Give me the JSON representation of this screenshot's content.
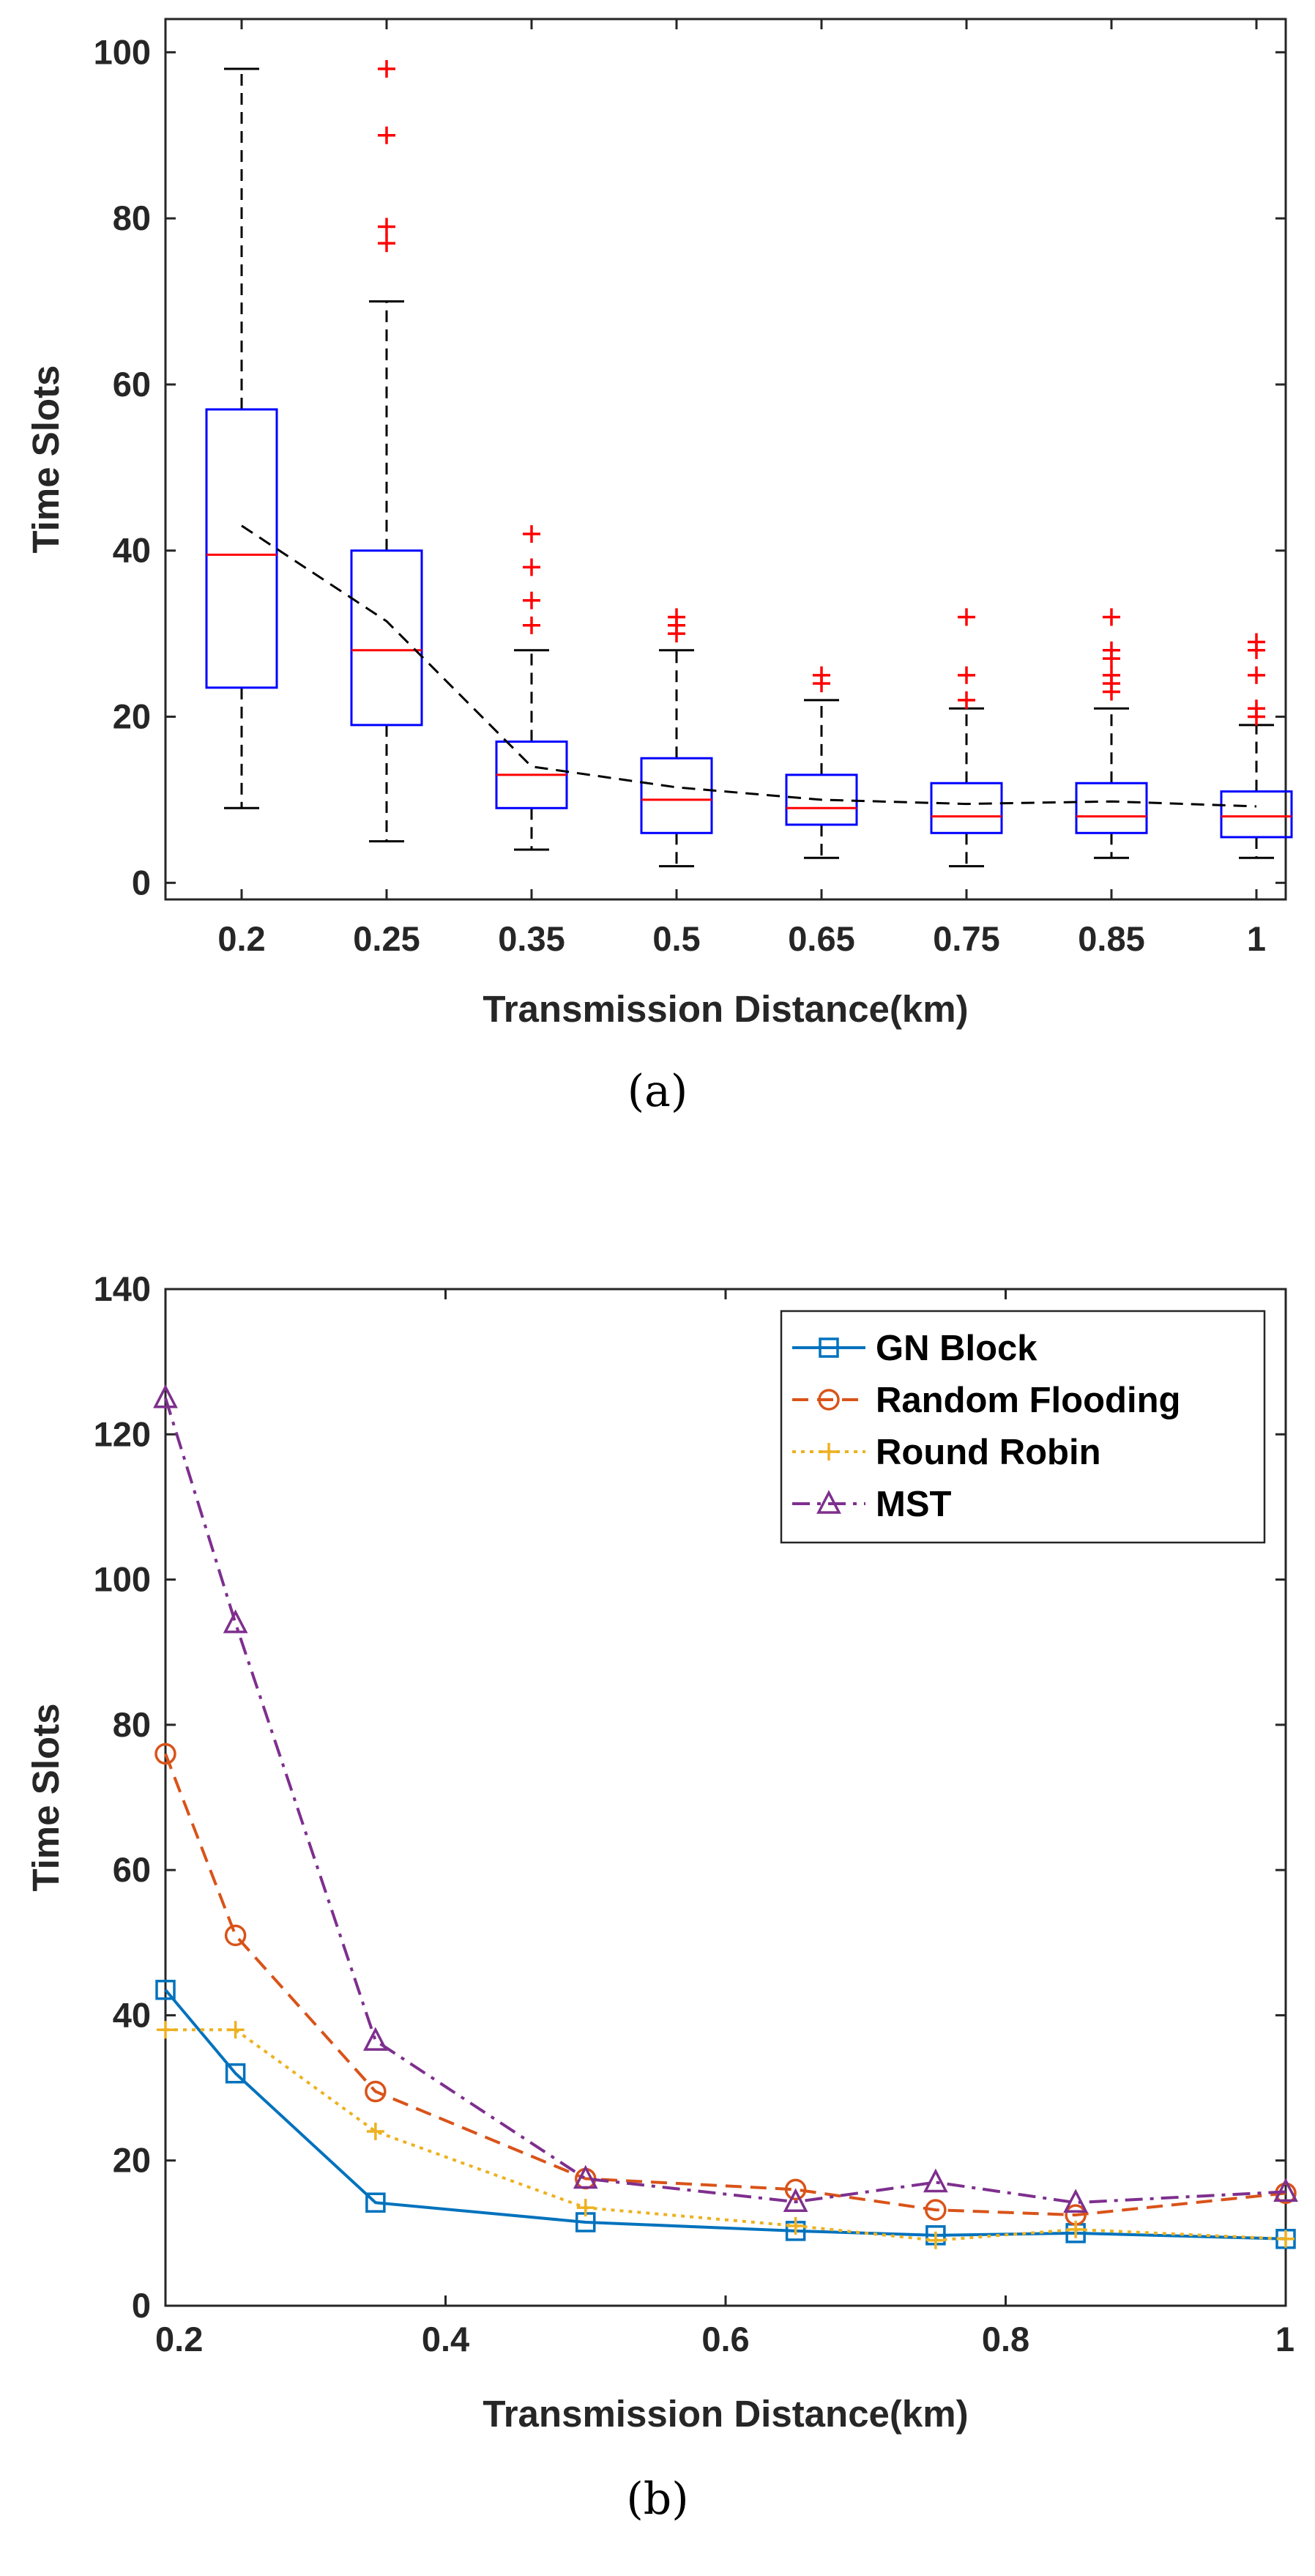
{
  "chart_data": [
    {
      "type": "box",
      "panel": "(a)",
      "caption": "(a)",
      "title": "",
      "xlabel": "Transmission Distance(km)",
      "ylabel": "Time Slots",
      "ylim": [
        -2,
        104
      ],
      "yticks": [
        0,
        20,
        40,
        60,
        80,
        100
      ],
      "categories": [
        "0.2",
        "0.25",
        "0.35",
        "0.5",
        "0.65",
        "0.75",
        "0.85",
        "1"
      ],
      "boxes": [
        {
          "min": 9,
          "q1": 23.5,
          "median": 39.5,
          "q3": 57,
          "max": 98,
          "outliers": []
        },
        {
          "min": 5,
          "q1": 19,
          "median": 28,
          "q3": 40,
          "max": 70,
          "outliers": [
            77,
            79,
            90,
            98
          ]
        },
        {
          "min": 4,
          "q1": 9,
          "median": 13,
          "q3": 17,
          "max": 28,
          "outliers": [
            31,
            34,
            38,
            42
          ]
        },
        {
          "min": 2,
          "q1": 6,
          "median": 10,
          "q3": 15,
          "max": 28,
          "outliers": [
            30,
            31,
            32
          ]
        },
        {
          "min": 3,
          "q1": 7,
          "median": 9,
          "q3": 13,
          "max": 22,
          "outliers": [
            24,
            25
          ]
        },
        {
          "min": 2,
          "q1": 6,
          "median": 8,
          "q3": 12,
          "max": 21,
          "outliers": [
            22,
            25,
            32
          ]
        },
        {
          "min": 3,
          "q1": 6,
          "median": 8,
          "q3": 12,
          "max": 21,
          "outliers": [
            23,
            24,
            25,
            27,
            28,
            32
          ]
        },
        {
          "min": 3,
          "q1": 5.5,
          "median": 8,
          "q3": 11,
          "max": 19,
          "outliers": [
            20,
            21,
            25,
            28,
            29
          ]
        }
      ],
      "mean_line": [
        43,
        31.5,
        14,
        11.5,
        10,
        9.5,
        9.8,
        9.2
      ],
      "colors": {
        "box": "#0000ff",
        "median": "#ff0000",
        "whisker": "#000000",
        "outlier": "#ff0000",
        "mean": "#000000"
      }
    },
    {
      "type": "line",
      "panel": "(b)",
      "caption": "(b)",
      "title": "",
      "xlabel": "Transmission Distance(km)",
      "ylabel": "Time Slots",
      "xlim": [
        0.2,
        1
      ],
      "ylim": [
        0,
        140
      ],
      "xticks": [
        0.2,
        0.4,
        0.6,
        0.8,
        1
      ],
      "xtick_labels": [
        "0.2",
        "0.4",
        "0.6",
        "0.8",
        "1"
      ],
      "yticks": [
        0,
        20,
        40,
        60,
        80,
        100,
        120,
        140
      ],
      "x": [
        0.2,
        0.25,
        0.35,
        0.5,
        0.65,
        0.75,
        0.85,
        1
      ],
      "legend_position": "top-right",
      "series": [
        {
          "name": "GN Block",
          "values": [
            43.5,
            32,
            14.2,
            11.5,
            10.3,
            9.7,
            10,
            9.2
          ],
          "color": "#0072bd",
          "marker": "square",
          "dash": "solid"
        },
        {
          "name": "Random Flooding",
          "values": [
            76,
            51,
            29.5,
            17.5,
            16,
            13.2,
            12.5,
            15.5
          ],
          "color": "#d95319",
          "marker": "circle",
          "dash": "dashed"
        },
        {
          "name": "Round Robin",
          "values": [
            38,
            38,
            24,
            13.5,
            11,
            9,
            10.5,
            9.2
          ],
          "color": "#edb120",
          "marker": "plus",
          "dash": "dotted"
        },
        {
          "name": "MST",
          "values": [
            125,
            94,
            36.5,
            17.5,
            14.3,
            17,
            14.2,
            15.7
          ],
          "color": "#7e2f8e",
          "marker": "triangle",
          "dash": "dashdot"
        }
      ]
    }
  ]
}
